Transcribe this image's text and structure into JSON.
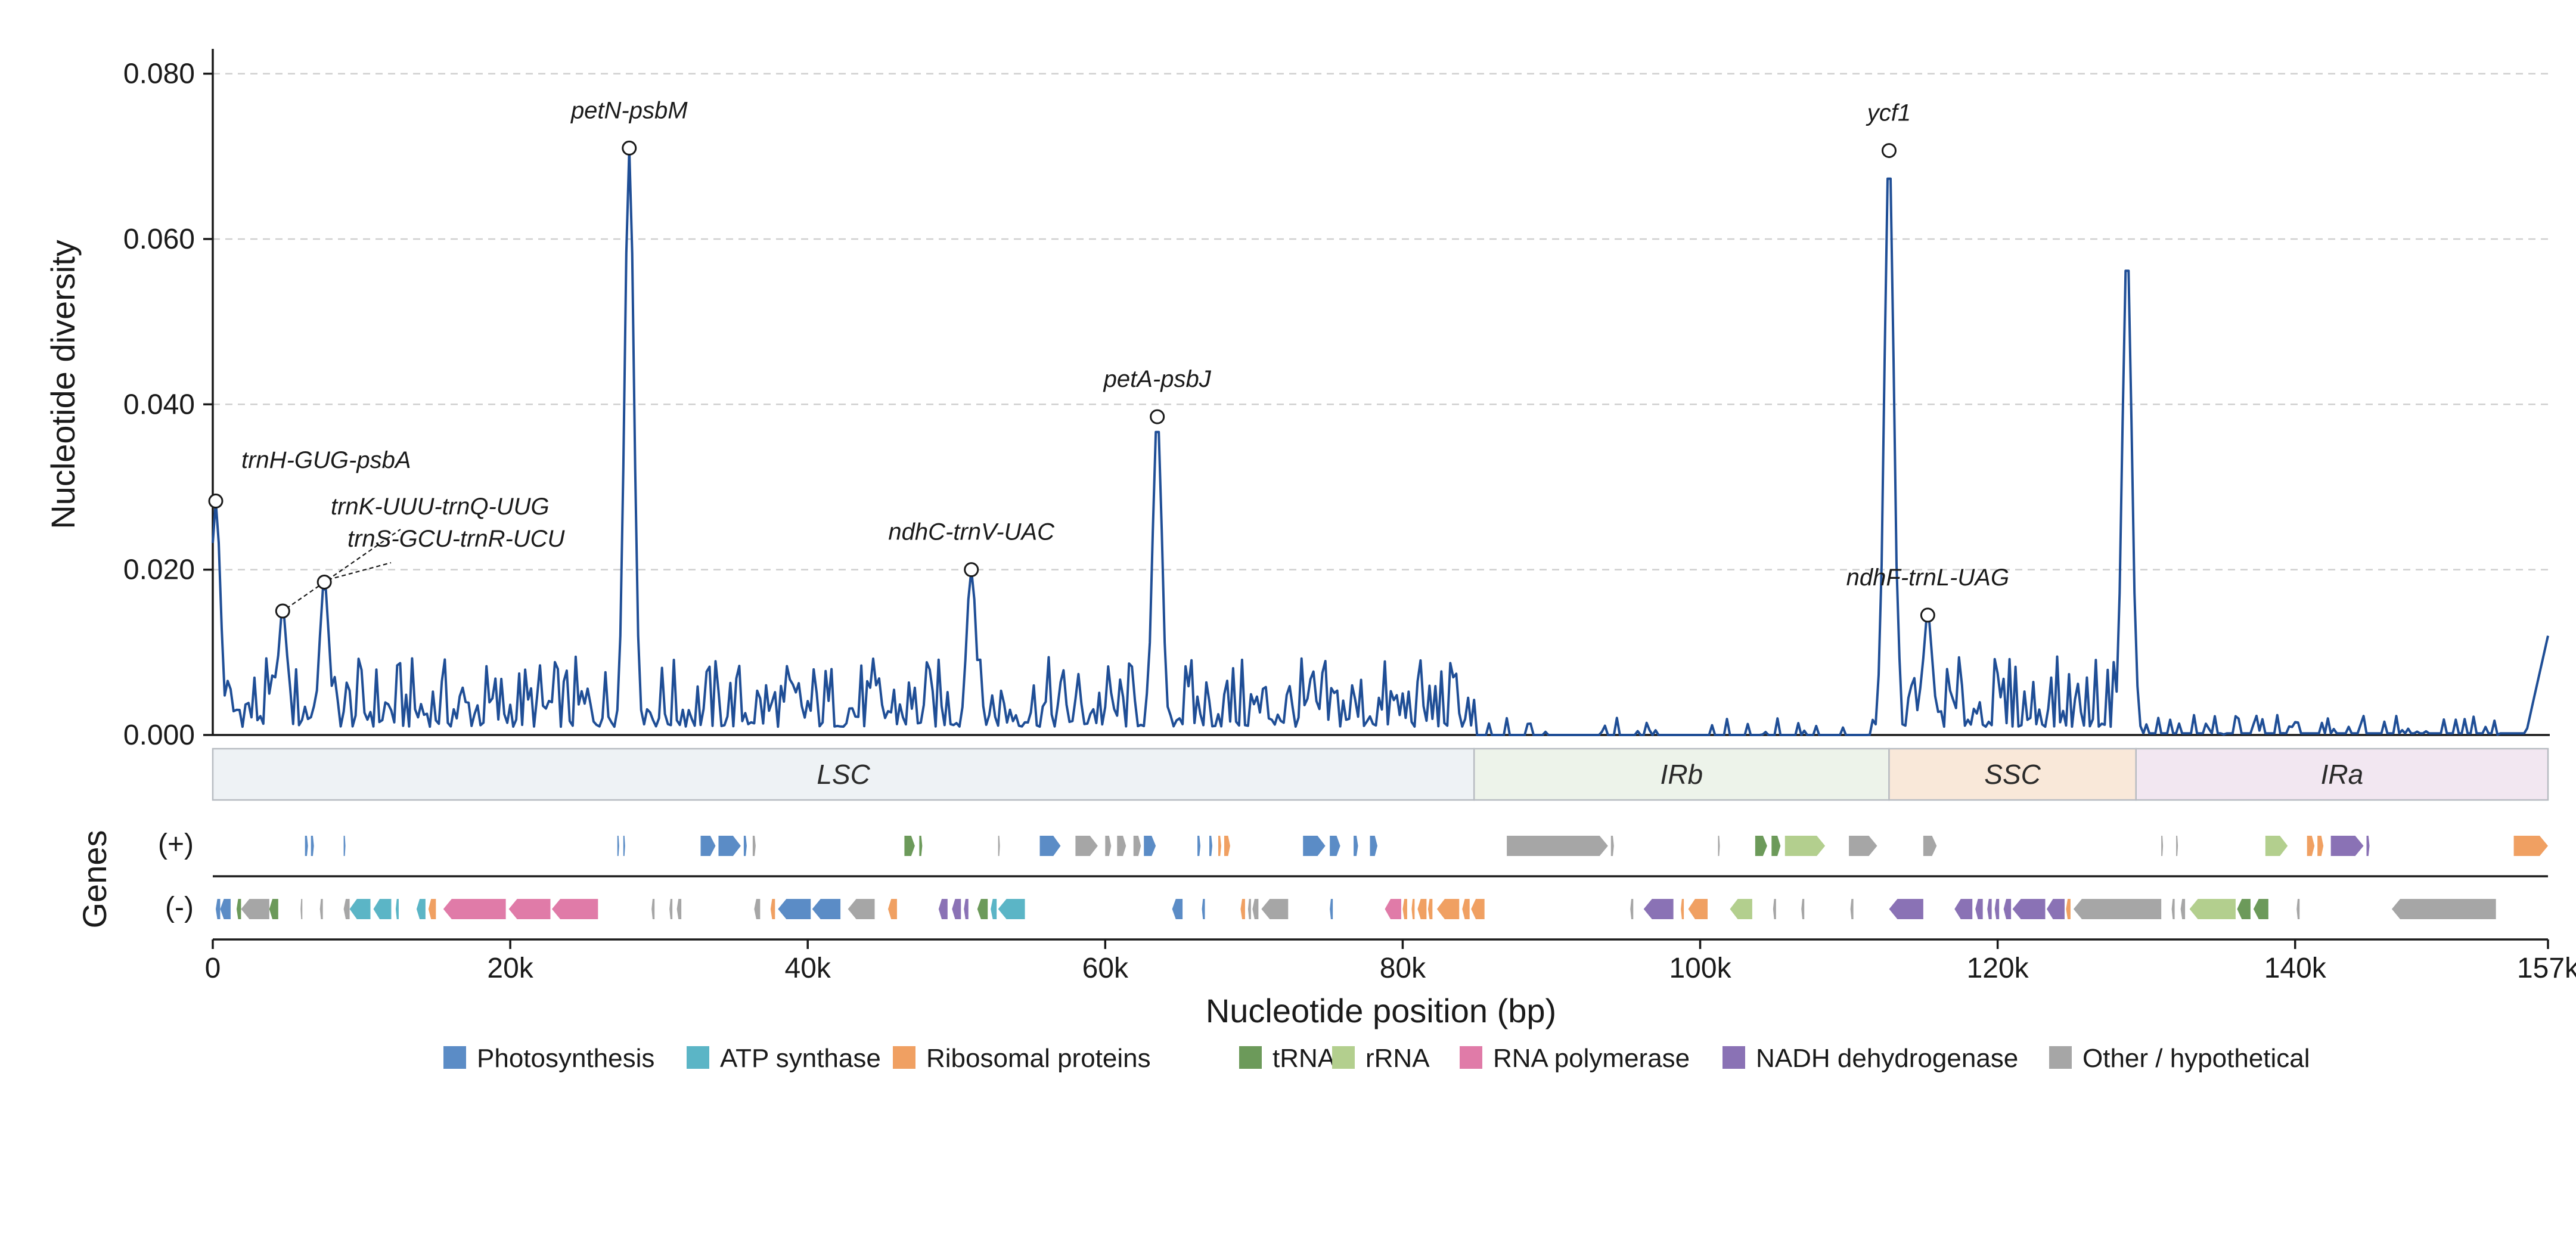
{
  "chart_data": {
    "type": "line",
    "ylabel": "Nucleotide diversity",
    "xlabel": "Nucleotide position (bp)",
    "xlim": [
      0,
      157000
    ],
    "ylim": [
      0,
      0.083
    ],
    "yticks": [
      0.0,
      0.02,
      0.04,
      0.06,
      0.08
    ],
    "ytick_labels": [
      "0.000",
      "0.020",
      "0.040",
      "0.060",
      "0.080"
    ],
    "xticks": [
      0,
      20000,
      40000,
      60000,
      80000,
      100000,
      120000,
      140000,
      157000
    ],
    "xtick_labels": [
      "0",
      "20k",
      "40k",
      "60k",
      "80k",
      "100k",
      "120k",
      "140k",
      "157k"
    ],
    "grid": "horizontal dashed",
    "line_color": "#1f4e96",
    "peaks": [
      {
        "x": 200,
        "y": 0.0283,
        "label": "trnH-GUG-psbA"
      },
      {
        "x": 4700,
        "y": 0.015,
        "label": "trnK-UUU-trnQ-UUG"
      },
      {
        "x": 7500,
        "y": 0.0185,
        "label": "trnS-GCU-trnR-UCU"
      },
      {
        "x": 28000,
        "y": 0.071,
        "label": "petN-psbM"
      },
      {
        "x": 51000,
        "y": 0.02,
        "label": "ndhC-trnV-UAC"
      },
      {
        "x": 63500,
        "y": 0.0385,
        "label": "petA-psbJ"
      },
      {
        "x": 112700,
        "y": 0.0707,
        "label": "ycf1"
      },
      {
        "x": 115300,
        "y": 0.0145,
        "label": "ndhF-trnL-UAG"
      }
    ],
    "extra_peak": {
      "x": 128700,
      "y": 0.059
    },
    "regions": [
      {
        "name": "LSC",
        "start": 0,
        "end": 84800,
        "color": "#eef2f5"
      },
      {
        "name": "IRb",
        "start": 84800,
        "end": 112700,
        "color": "#edf3ea"
      },
      {
        "name": "SSC",
        "start": 112700,
        "end": 129300,
        "color": "#f9e8d9"
      },
      {
        "name": "IRa",
        "start": 129300,
        "end": 157000,
        "color": "#f2e7f1"
      }
    ],
    "genes_label": "Genes",
    "strand_labels": [
      "(+)",
      "(-)"
    ],
    "gene_categories": [
      {
        "name": "Photosynthesis",
        "color": "#5b8cc6"
      },
      {
        "name": "ATP synthase",
        "color": "#5bb5c6"
      },
      {
        "name": "Ribosomal proteins",
        "color": "#f0a062"
      },
      {
        "name": "tRNA",
        "color": "#6c9a5a"
      },
      {
        "name": "rRNA",
        "color": "#b3cf8e"
      },
      {
        "name": "RNA polymerase",
        "color": "#e07ba8"
      },
      {
        "name": "NADH dehydrogenase",
        "color": "#8a72b5"
      },
      {
        "name": "Other / hypothetical",
        "color": "#a6a6a6"
      }
    ],
    "genes_plus": [
      [
        6200,
        6400,
        0
      ],
      [
        6600,
        6800,
        0
      ],
      [
        8800,
        8900,
        0
      ],
      [
        27200,
        27300,
        0
      ],
      [
        27600,
        27700,
        0
      ],
      [
        32800,
        33800,
        0
      ],
      [
        34000,
        35500,
        0
      ],
      [
        35700,
        35900,
        0
      ],
      [
        36300,
        36500,
        7
      ],
      [
        46500,
        47200,
        3
      ],
      [
        47500,
        47700,
        3
      ],
      [
        52800,
        52900,
        7
      ],
      [
        55600,
        57000,
        0
      ],
      [
        58000,
        59500,
        7
      ],
      [
        60000,
        60400,
        7
      ],
      [
        60800,
        61400,
        7
      ],
      [
        61900,
        62400,
        7
      ],
      [
        62600,
        63400,
        0
      ],
      [
        66200,
        66400,
        0
      ],
      [
        67000,
        67200,
        0
      ],
      [
        67600,
        67800,
        2
      ],
      [
        68000,
        68400,
        2
      ],
      [
        73300,
        74800,
        0
      ],
      [
        75100,
        75800,
        0
      ],
      [
        76700,
        77000,
        0
      ],
      [
        77800,
        78300,
        0
      ],
      [
        87000,
        93800,
        7
      ],
      [
        94000,
        94200,
        7
      ],
      [
        101200,
        101300,
        7
      ],
      [
        103700,
        104500,
        3
      ],
      [
        104800,
        105400,
        3
      ],
      [
        105700,
        108400,
        4
      ],
      [
        110000,
        111900,
        7
      ],
      [
        115000,
        115900,
        7
      ],
      [
        131000,
        131100,
        7
      ],
      [
        132000,
        132100,
        7
      ],
      [
        138000,
        139500,
        4
      ],
      [
        140800,
        141300,
        2
      ],
      [
        141500,
        141900,
        2
      ],
      [
        142400,
        144600,
        6
      ],
      [
        144800,
        145000,
        6
      ],
      [
        154700,
        157000,
        2
      ]
    ],
    "genes_minus": [
      [
        200,
        500,
        0
      ],
      [
        500,
        1200,
        0
      ],
      [
        1600,
        1900,
        3
      ],
      [
        1900,
        3800,
        7
      ],
      [
        3800,
        4400,
        3
      ],
      [
        5900,
        6000,
        7
      ],
      [
        7200,
        7400,
        7
      ],
      [
        8800,
        9200,
        7
      ],
      [
        9200,
        10600,
        1
      ],
      [
        10800,
        12000,
        1
      ],
      [
        12300,
        12500,
        1
      ],
      [
        13700,
        14300,
        1
      ],
      [
        14500,
        15000,
        2
      ],
      [
        15500,
        19700,
        5
      ],
      [
        19900,
        22700,
        5
      ],
      [
        22800,
        25900,
        5
      ],
      [
        29500,
        29700,
        7
      ],
      [
        30700,
        30900,
        7
      ],
      [
        31200,
        31500,
        7
      ],
      [
        36400,
        36800,
        7
      ],
      [
        37500,
        37800,
        2
      ],
      [
        38000,
        40200,
        0
      ],
      [
        40300,
        42200,
        0
      ],
      [
        42700,
        44500,
        7
      ],
      [
        45400,
        46000,
        2
      ],
      [
        48800,
        49400,
        6
      ],
      [
        49700,
        50300,
        6
      ],
      [
        50500,
        50800,
        6
      ],
      [
        51400,
        52100,
        3
      ],
      [
        52300,
        52700,
        1
      ],
      [
        52800,
        54600,
        1
      ],
      [
        64500,
        65200,
        0
      ],
      [
        66500,
        66700,
        0
      ],
      [
        69600,
        69800,
        7
      ],
      [
        69900,
        70300,
        7
      ],
      [
        69100,
        69400,
        2
      ],
      [
        70500,
        72300,
        7
      ],
      [
        75100,
        75300,
        0
      ],
      [
        78800,
        79900,
        5
      ],
      [
        80000,
        80300,
        2
      ],
      [
        80600,
        80800,
        2
      ],
      [
        81000,
        81600,
        2
      ],
      [
        81700,
        82000,
        2
      ],
      [
        82300,
        83800,
        2
      ],
      [
        84000,
        84500,
        2
      ],
      [
        84600,
        85500,
        2
      ],
      [
        95300,
        95500,
        7
      ],
      [
        96200,
        98200,
        6
      ],
      [
        98700,
        98900,
        2
      ],
      [
        99200,
        100500,
        2
      ],
      [
        102000,
        103500,
        4
      ],
      [
        104900,
        105100,
        7
      ],
      [
        106800,
        107000,
        7
      ],
      [
        110100,
        110300,
        7
      ],
      [
        112700,
        115000,
        6
      ],
      [
        117100,
        118300,
        6
      ],
      [
        118500,
        119000,
        6
      ],
      [
        119300,
        119600,
        6
      ],
      [
        119800,
        120100,
        6
      ],
      [
        120400,
        120900,
        6
      ],
      [
        121000,
        123200,
        6
      ],
      [
        123300,
        124500,
        6
      ],
      [
        124600,
        124900,
        2
      ],
      [
        125100,
        131000,
        7
      ],
      [
        131700,
        131900,
        7
      ],
      [
        132300,
        132600,
        7
      ],
      [
        132900,
        136000,
        4
      ],
      [
        136100,
        137000,
        3
      ],
      [
        137200,
        138200,
        3
      ],
      [
        140100,
        140300,
        7
      ],
      [
        146500,
        153500,
        7
      ]
    ],
    "legend_placement": "bottom-center"
  }
}
